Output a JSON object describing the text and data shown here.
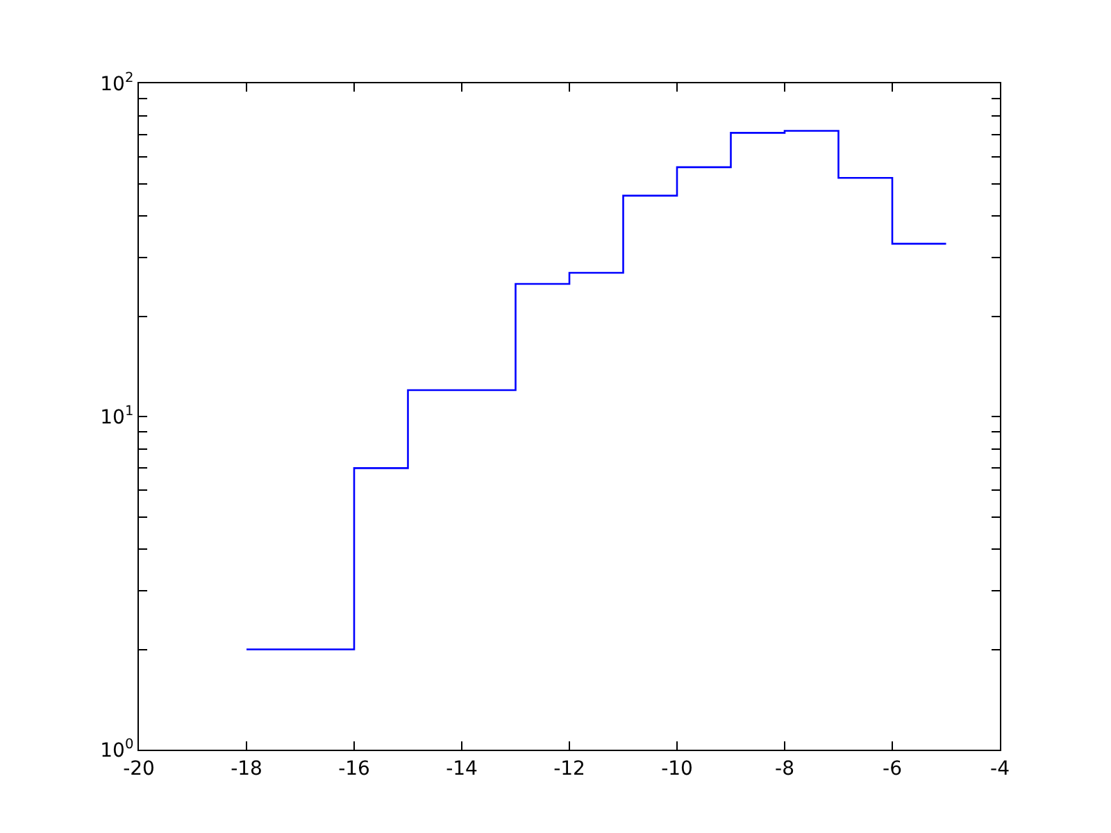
{
  "chart_data": {
    "type": "step",
    "x": [
      -18,
      -16,
      -15,
      -14,
      -13,
      -12,
      -11,
      -10,
      -9,
      -8,
      -7,
      -6,
      -5
    ],
    "series": [
      {
        "color": "#0000ff",
        "values": [
          2,
          7,
          12,
          12,
          25,
          27,
          46,
          56,
          71,
          72,
          52,
          33,
          33
        ]
      }
    ],
    "log": "y",
    "marker": "none",
    "line_style": "solid",
    "xlim": [
      -20,
      -4
    ],
    "xticks": [
      -20,
      -18,
      -16,
      -14,
      -12,
      -10,
      -8,
      -6,
      -4
    ],
    "ylim": [
      1,
      100
    ],
    "yticks": [
      {
        "value": 1,
        "label": "10$^{0}$"
      },
      {
        "value": 2,
        "label": null
      },
      {
        "value": 3,
        "label": null
      },
      {
        "value": 4,
        "label": null
      },
      {
        "value": 5,
        "label": null
      },
      {
        "value": 6,
        "label": null
      },
      {
        "value": 7,
        "label": null
      },
      {
        "value": 8,
        "label": null
      },
      {
        "value": 9,
        "label": null
      },
      {
        "value": 10,
        "label": "10$^{1}$"
      },
      {
        "value": 20,
        "label": null
      },
      {
        "value": 30,
        "label": null
      },
      {
        "value": 40,
        "label": null
      },
      {
        "value": 50,
        "label": null
      },
      {
        "value": 60,
        "label": null
      },
      {
        "value": 70,
        "label": null
      },
      {
        "value": 80,
        "label": null
      },
      {
        "value": 90,
        "label": null
      },
      {
        "value": 100,
        "label": "10$^{2}$"
      }
    ]
  }
}
